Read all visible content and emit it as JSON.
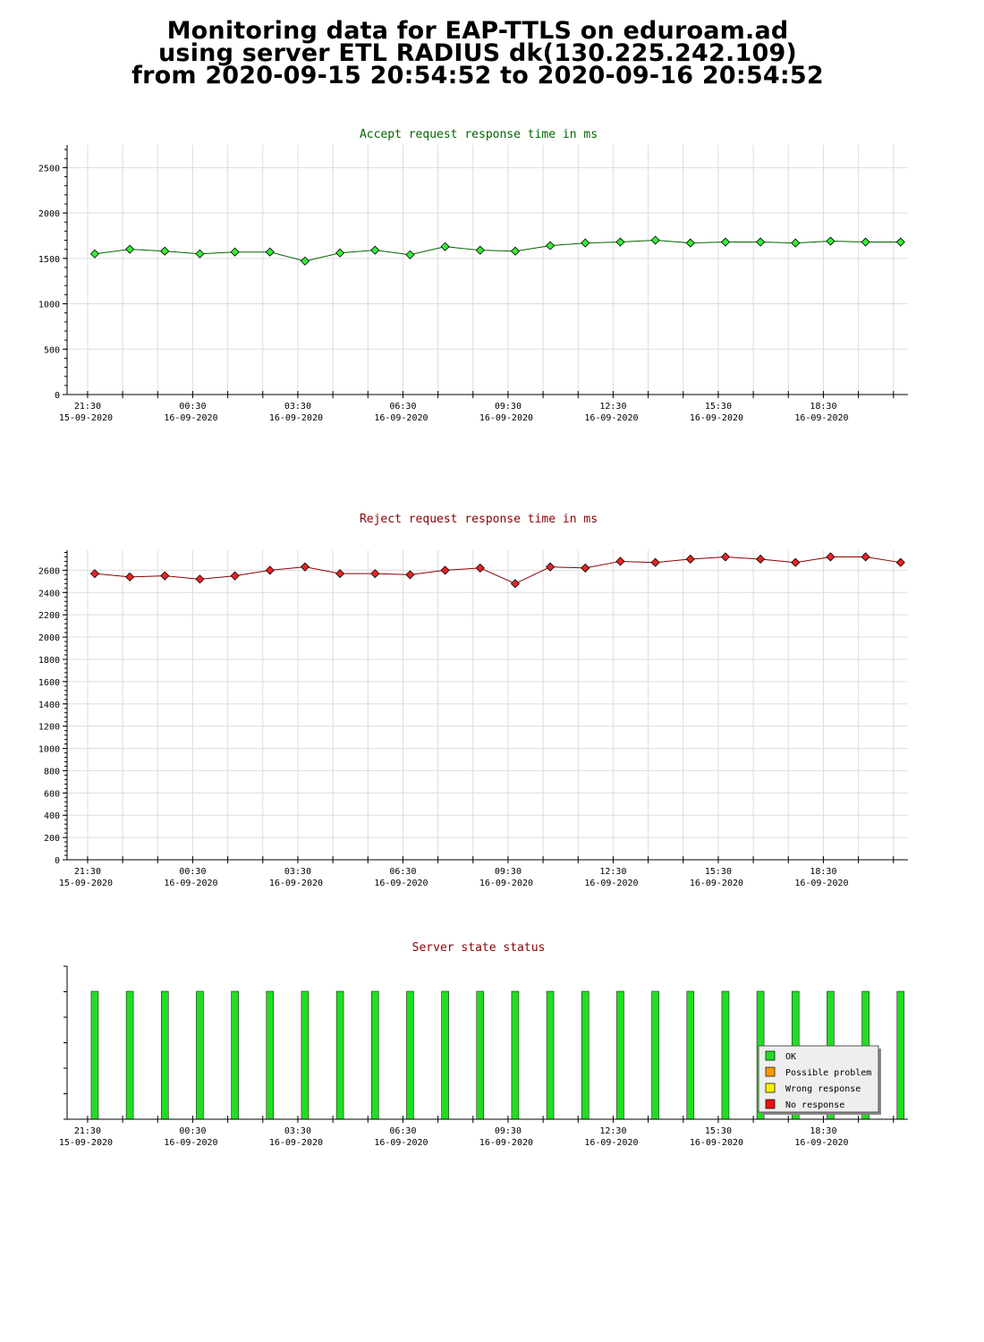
{
  "page": {
    "title_lines": [
      "Monitoring data for EAP-TTLS on eduroam.ad",
      "using server ETL RADIUS dk(130.225.242.109)",
      "from 2020-09-15 20:54:52 to 2020-09-16 20:54:52"
    ]
  },
  "chart_data": [
    {
      "type": "line",
      "title": "Accept request response time in ms",
      "title_color": "#006400",
      "xlabel": "",
      "ylabel": "",
      "ylim": [
        0,
        2750
      ],
      "yticks": [
        0,
        500,
        1000,
        1500,
        2000,
        2500
      ],
      "x_ticks": [
        {
          "time": "21:30",
          "date": "15-09-2020"
        },
        {
          "time": "00:30",
          "date": "16-09-2020"
        },
        {
          "time": "03:30",
          "date": "16-09-2020"
        },
        {
          "time": "06:30",
          "date": "16-09-2020"
        },
        {
          "time": "09:30",
          "date": "16-09-2020"
        },
        {
          "time": "12:30",
          "date": "16-09-2020"
        },
        {
          "time": "15:30",
          "date": "16-09-2020"
        },
        {
          "time": "18:30",
          "date": "16-09-2020"
        }
      ],
      "series": [
        {
          "marker_color": "#33ee33",
          "line_color": "#006400",
          "x": [
            "21:30",
            "22:30",
            "23:30",
            "00:30",
            "01:30",
            "02:30",
            "03:30",
            "04:30",
            "05:30",
            "06:30",
            "07:30",
            "08:30",
            "09:30",
            "10:30",
            "11:30",
            "12:30",
            "13:30",
            "14:30",
            "15:30",
            "16:30",
            "17:30",
            "18:30",
            "19:30",
            "20:30"
          ],
          "values": [
            1550,
            1600,
            1580,
            1550,
            1570,
            1570,
            1470,
            1560,
            1590,
            1540,
            1630,
            1590,
            1580,
            1640,
            1670,
            1680,
            1700,
            1670,
            1680,
            1680,
            1670,
            1690,
            1680,
            1680
          ]
        }
      ],
      "grid": true
    },
    {
      "type": "line",
      "title": "Reject request response time in ms",
      "title_color": "#8b0000",
      "xlabel": "",
      "ylabel": "",
      "ylim": [
        0,
        2780
      ],
      "yticks": [
        0,
        200,
        400,
        600,
        800,
        1000,
        1200,
        1400,
        1600,
        1800,
        2000,
        2200,
        2400,
        2600
      ],
      "x_ticks": [
        {
          "time": "21:30",
          "date": "15-09-2020"
        },
        {
          "time": "00:30",
          "date": "16-09-2020"
        },
        {
          "time": "03:30",
          "date": "16-09-2020"
        },
        {
          "time": "06:30",
          "date": "16-09-2020"
        },
        {
          "time": "09:30",
          "date": "16-09-2020"
        },
        {
          "time": "12:30",
          "date": "16-09-2020"
        },
        {
          "time": "15:30",
          "date": "16-09-2020"
        },
        {
          "time": "18:30",
          "date": "16-09-2020"
        }
      ],
      "series": [
        {
          "marker_color": "#ee2222",
          "line_color": "#8b0000",
          "x": [
            "21:30",
            "22:30",
            "23:30",
            "00:30",
            "01:30",
            "02:30",
            "03:30",
            "04:30",
            "05:30",
            "06:30",
            "07:30",
            "08:30",
            "09:30",
            "10:30",
            "11:30",
            "12:30",
            "13:30",
            "14:30",
            "15:30",
            "16:30",
            "17:30",
            "18:30",
            "19:30",
            "20:30"
          ],
          "values": [
            2570,
            2540,
            2550,
            2520,
            2550,
            2600,
            2630,
            2570,
            2570,
            2560,
            2600,
            2620,
            2480,
            2630,
            2620,
            2680,
            2670,
            2700,
            2720,
            2700,
            2670,
            2720,
            2720,
            2670
          ]
        }
      ],
      "grid": true
    },
    {
      "type": "bar",
      "title": "Server state status",
      "title_color": "#8b0000",
      "xlabel": "",
      "ylabel": "",
      "x_ticks": [
        {
          "time": "21:30",
          "date": "15-09-2020"
        },
        {
          "time": "00:30",
          "date": "16-09-2020"
        },
        {
          "time": "03:30",
          "date": "16-09-2020"
        },
        {
          "time": "06:30",
          "date": "16-09-2020"
        },
        {
          "time": "09:30",
          "date": "16-09-2020"
        },
        {
          "time": "12:30",
          "date": "16-09-2020"
        },
        {
          "time": "15:30",
          "date": "16-09-2020"
        },
        {
          "time": "18:30",
          "date": "16-09-2020"
        }
      ],
      "x": [
        "21:30",
        "22:30",
        "23:30",
        "00:30",
        "01:30",
        "02:30",
        "03:30",
        "04:30",
        "05:30",
        "06:30",
        "07:30",
        "08:30",
        "09:30",
        "10:30",
        "11:30",
        "12:30",
        "13:30",
        "14:30",
        "15:30",
        "16:30",
        "17:30",
        "18:30",
        "19:30",
        "20:30"
      ],
      "states": [
        "OK",
        "OK",
        "OK",
        "OK",
        "OK",
        "OK",
        "OK",
        "OK",
        "OK",
        "OK",
        "OK",
        "OK",
        "OK",
        "OK",
        "OK",
        "OK",
        "OK",
        "OK",
        "OK",
        "OK",
        "OK",
        "OK",
        "OK",
        "OK"
      ],
      "legend": {
        "placement": "bottom-right",
        "items": [
          {
            "label": "OK",
            "color": "#22dd22"
          },
          {
            "label": "Possible problem",
            "color": "#ff9900"
          },
          {
            "label": "Wrong response",
            "color": "#ffee00"
          },
          {
            "label": "No response",
            "color": "#ee1111"
          }
        ]
      },
      "grid": false
    }
  ]
}
